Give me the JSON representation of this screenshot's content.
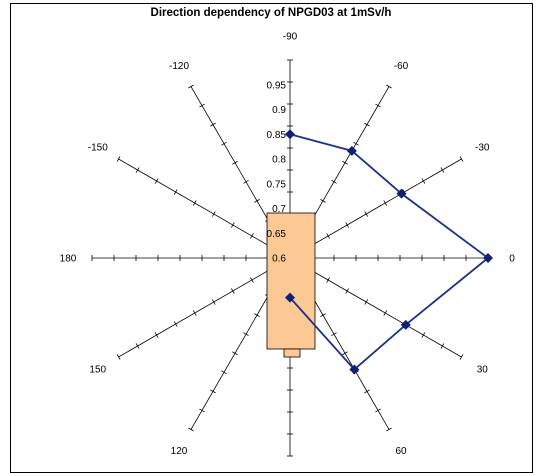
{
  "chart_data": {
    "type": "radar",
    "title": "Direction dependency of NPGD03 at 1mSv/h",
    "angles": [
      "0",
      "-30",
      "-60",
      "-90",
      "-120",
      "-150",
      "180",
      "150",
      "120",
      "90",
      "60",
      "30"
    ],
    "radial_ticks": [
      "0.6",
      "0.65",
      "0.7",
      "0.75",
      "0.8",
      "0.85",
      "0.9",
      "0.95"
    ],
    "rlim": [
      0.6,
      1.0
    ],
    "series": [
      {
        "angles_deg": [
          -90,
          -60,
          -30,
          0,
          30,
          60,
          90
        ],
        "values": [
          0.85,
          0.85,
          0.86,
          1.0,
          0.87,
          0.86,
          0.68
        ]
      }
    ],
    "line_color": "#1f2f8f",
    "marker_color": "#10207a",
    "detector_fill": "#fcc995",
    "grid": true
  }
}
